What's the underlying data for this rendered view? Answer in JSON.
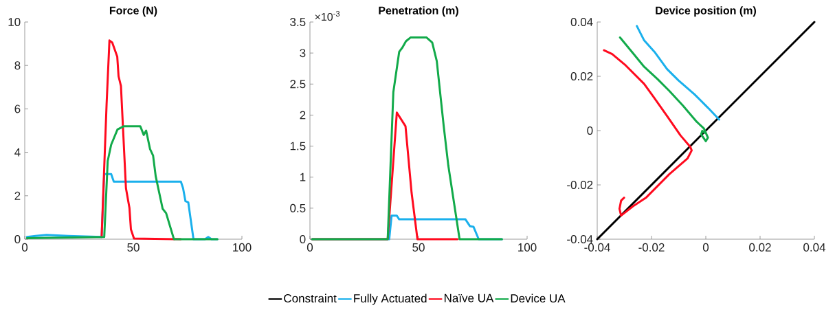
{
  "chart_data": [
    {
      "type": "line",
      "title": "Force (N)",
      "xlim": [
        0,
        100
      ],
      "ylim": [
        0,
        10
      ],
      "xticks": [
        0,
        50,
        100
      ],
      "yticks": [
        0,
        2,
        4,
        6,
        8,
        10
      ],
      "series": [
        {
          "color": "#1ab0ec",
          "x": [
            1,
            5,
            10,
            20,
            35.4,
            36.6,
            39.8,
            41,
            71.9,
            72.9,
            74,
            75.3,
            77.7,
            83,
            84.5,
            86,
            88.7
          ],
          "values": [
            0.1,
            0.15,
            0.2,
            0.15,
            0.1,
            3.0,
            3.0,
            2.65,
            2.65,
            2.35,
            1.75,
            1.7,
            0,
            0,
            0.1,
            0,
            0
          ]
        },
        {
          "color": "#ff0a1e",
          "x": [
            35.4,
            37.7,
            39,
            40.3,
            42.6,
            43.2,
            44.3,
            46.6,
            48.2,
            48.9,
            50.3,
            71.9
          ],
          "values": [
            0.1,
            6.25,
            9.15,
            9.05,
            8.4,
            7.5,
            7.05,
            2.35,
            1.45,
            0.45,
            0.03,
            0
          ]
        },
        {
          "color": "#12aa4a",
          "x": [
            1,
            36.6,
            38.2,
            39.8,
            42.7,
            45.6,
            53.2,
            54.8,
            55.9,
            57.7,
            59.1,
            60.3,
            63.5,
            65.1,
            68.7,
            88.7
          ],
          "values": [
            0.05,
            0.1,
            3.6,
            4.35,
            5.05,
            5.2,
            5.2,
            4.8,
            5.0,
            4.15,
            3.85,
            2.9,
            1.4,
            1.2,
            0,
            0
          ]
        }
      ]
    },
    {
      "type": "line",
      "title": "Penetration (m)",
      "annotations": [
        "×10$^{-3}$"
      ],
      "xlim": [
        0,
        100
      ],
      "ylim": [
        0,
        3.5
      ],
      "xticks": [
        0,
        50,
        100
      ],
      "yticks": [
        0,
        0.5,
        1,
        1.5,
        2,
        2.5,
        3,
        3.5
      ],
      "series": [
        {
          "color": "#1ab0ec",
          "x": [
            1,
            36.5,
            37.6,
            40,
            41.1,
            71.6,
            73.7,
            75.3,
            77.7,
            88.4
          ],
          "values": [
            0,
            0,
            0.38,
            0.38,
            0.32,
            0.32,
            0.21,
            0.2,
            0,
            0
          ]
        },
        {
          "color": "#ff0a1e",
          "x": [
            1,
            35.8,
            40,
            44,
            46.8,
            49.5,
            67.9
          ],
          "values": [
            0,
            0,
            2.04,
            1.82,
            0.75,
            0,
            0
          ]
        },
        {
          "color": "#12aa4a",
          "x": [
            1,
            35.8,
            38.4,
            41.1,
            42.6,
            44.2,
            46.3,
            53.7,
            56.3,
            58.4,
            61.6,
            63.7,
            68.9,
            88.4
          ],
          "values": [
            0,
            0,
            2.37,
            3.02,
            3.09,
            3.19,
            3.25,
            3.25,
            3.17,
            2.87,
            1.82,
            1.19,
            0,
            0
          ]
        }
      ]
    },
    {
      "type": "line",
      "title": "Device position (m)",
      "xlim": [
        -0.04,
        0.04
      ],
      "ylim": [
        -0.04,
        0.04
      ],
      "xticks": [
        -0.04,
        -0.02,
        0,
        0.02,
        0.04
      ],
      "yticks": [
        -0.04,
        -0.02,
        0,
        0.02,
        0.04
      ],
      "legend": "bottom",
      "series": [
        {
          "name": "Constraint",
          "color": "#000000",
          "x": [
            -0.04,
            0.04
          ],
          "values": [
            -0.04,
            0.04
          ]
        },
        {
          "name": "Fully Actuated",
          "color": "#1ab0ec",
          "x": [
            -0.0254,
            -0.0227,
            -0.0189,
            -0.0143,
            -0.0101,
            -0.0042,
            0.0008,
            0.0049
          ],
          "values": [
            0.0385,
            0.0332,
            0.029,
            0.0227,
            0.0185,
            0.0134,
            0.0084,
            0.0041
          ]
        },
        {
          "name": "Naïve UA",
          "color": "#ff0a1e",
          "x": [
            -0.0375,
            -0.0345,
            -0.0295,
            -0.0227,
            -0.0194,
            -0.0143,
            -0.0093,
            -0.0057,
            -0.0052,
            -0.0067,
            -0.0135,
            -0.0219,
            -0.0269,
            -0.0312,
            -0.0318,
            -0.0312,
            -0.0301
          ],
          "values": [
            0.0296,
            0.0282,
            0.024,
            0.0172,
            0.0126,
            0.0054,
            -0.0018,
            -0.006,
            -0.0073,
            -0.0102,
            -0.0161,
            -0.0246,
            -0.0279,
            -0.0313,
            -0.0288,
            -0.0258,
            -0.0247
          ]
        },
        {
          "name": "Device UA",
          "color": "#12aa4a",
          "x": [
            -0.0316,
            -0.0269,
            -0.0227,
            -0.0177,
            -0.0135,
            -0.0084,
            -0.0034,
            -0.0007,
            0.0008,
            0,
            -0.0017,
            -0.0013,
            -0.0002
          ],
          "values": [
            0.0343,
            0.0286,
            0.0235,
            0.0189,
            0.0147,
            0.0092,
            0.0033,
            0.0008,
            -0.0026,
            -0.0039,
            -0.0014,
            -0.0001,
            -0.0009
          ]
        }
      ]
    }
  ]
}
